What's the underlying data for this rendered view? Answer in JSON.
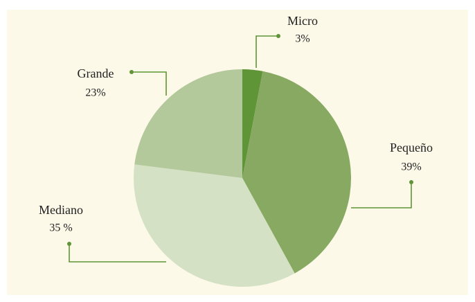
{
  "chart_data": {
    "type": "pie",
    "categories": [
      "Micro",
      "Pequeño",
      "Mediano",
      "Grande"
    ],
    "values": [
      3,
      39,
      35,
      23
    ],
    "value_labels": [
      "3%",
      "39%",
      "35 %",
      "23%"
    ],
    "colors": [
      "#5f9536",
      "#87a962",
      "#d4e1c4",
      "#b3c89b"
    ]
  }
}
